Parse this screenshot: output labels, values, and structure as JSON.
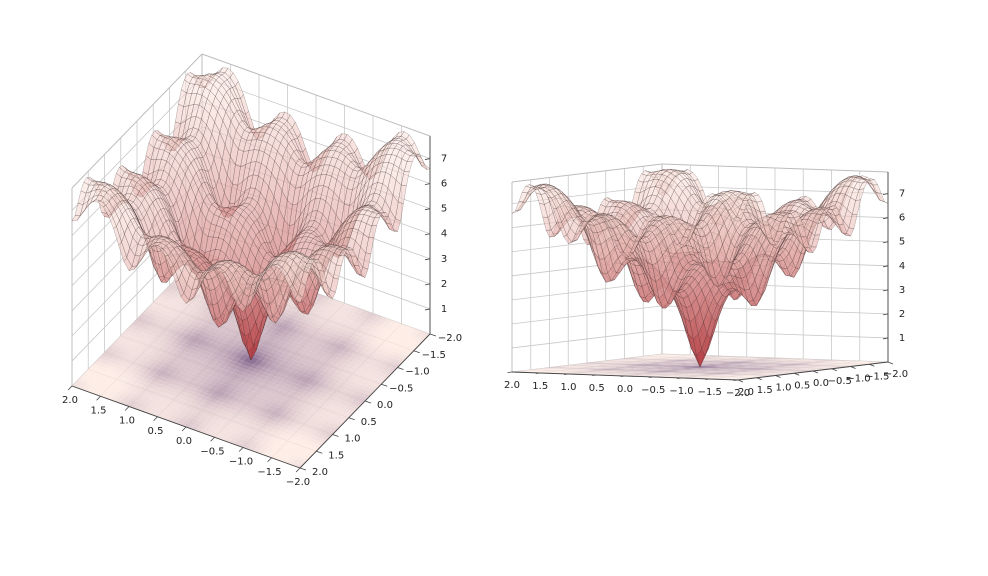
{
  "chart_data": [
    {
      "type": "surface",
      "view": "elevated",
      "function": "ackley",
      "x_range": [
        -2.0,
        2.0
      ],
      "y_range": [
        -2.0,
        2.0
      ],
      "z_range": [
        0,
        7.9
      ],
      "x_ticks": [
        "2.0",
        "1.5",
        "1.0",
        "0.5",
        "0.0",
        "−0.5",
        "−1.0",
        "−1.5",
        "−2.0"
      ],
      "y_ticks": [
        "−2.0",
        "−1.5",
        "−1.0",
        "−0.5",
        "0.0",
        "0.5",
        "1.0",
        "1.5",
        "2.0"
      ],
      "z_ticks": [
        "1",
        "2",
        "3",
        "4",
        "5",
        "6",
        "7"
      ],
      "colormap": "Reds",
      "grid": true,
      "contour_projection": "floor"
    },
    {
      "type": "surface",
      "view": "side",
      "function": "ackley",
      "x_range": [
        -2.0,
        2.0
      ],
      "y_range": [
        -2.0,
        2.0
      ],
      "z_range": [
        0,
        7.9
      ],
      "x_ticks": [
        "2.0",
        "1.5",
        "1.0",
        "0.5",
        "0.0",
        "−0.5",
        "−1.0",
        "−1.5",
        "−2.0"
      ],
      "y_ticks": [
        "2.0",
        "1.5",
        "1.0",
        "0.5",
        "0.0",
        "−0.5",
        "−1.0",
        "−1.5",
        "−2.0"
      ],
      "z_ticks": [
        "1",
        "2",
        "3",
        "4",
        "5",
        "6",
        "7"
      ],
      "colormap": "Reds",
      "grid": true,
      "contour_projection": "floor"
    }
  ],
  "colors": {
    "surface_low": "#b2363c",
    "surface_high": "#fbe4dc",
    "wire": "#3a2a2a",
    "floor_low": "#6e4a78",
    "floor_high": "#fdeae2",
    "grid": "#c8c8c8",
    "axis": "#444444"
  }
}
